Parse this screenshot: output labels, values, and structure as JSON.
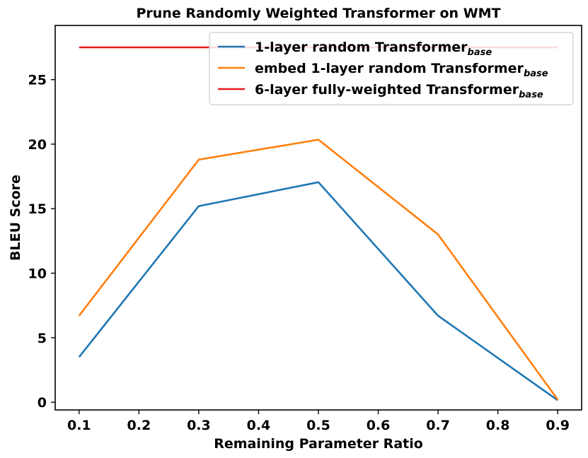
{
  "chart_data": {
    "type": "line",
    "title": "Prune Randomly Weighted Transformer on WMT",
    "xlabel": "Remaining Parameter Ratio",
    "ylabel": "BLEU Score",
    "x": [
      0.1,
      0.3,
      0.5,
      0.7,
      0.9
    ],
    "xticks": [
      "0.1",
      "0.2",
      "0.3",
      "0.4",
      "0.5",
      "0.6",
      "0.7",
      "0.8",
      "0.9"
    ],
    "yticks": [
      "0",
      "5",
      "10",
      "15",
      "20",
      "25"
    ],
    "xlim": [
      0.06,
      0.94
    ],
    "ylim": [
      -0.6,
      29.2
    ],
    "grid": false,
    "legend_position": "top-right",
    "series": [
      {
        "name": "1-layer random Transformer",
        "name_sub": "base",
        "color": "#1f77b4",
        "values": [
          3.5,
          15.2,
          17.05,
          6.7,
          0.15
        ]
      },
      {
        "name": "embed 1-layer random Transformer",
        "name_sub": "base",
        "color": "#ff7f0e",
        "values": [
          6.7,
          18.8,
          20.35,
          13.0,
          0.2
        ]
      },
      {
        "name": "6-layer fully-weighted Transformer",
        "name_sub": "base",
        "color": "#e31a1c",
        "values": [
          27.5,
          27.5,
          27.5,
          27.5,
          27.5
        ]
      }
    ]
  }
}
